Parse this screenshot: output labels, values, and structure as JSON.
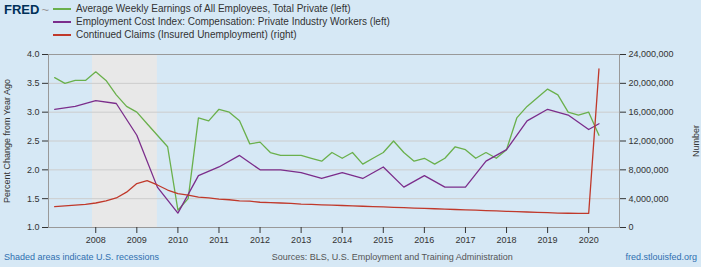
{
  "chart_data": {
    "type": "line",
    "annotations": [
      "FRED",
      "~",
      "Shaded areas indicate U.S. recessions",
      "Sources: BLS, U.S. Employment and Training Administration",
      "fred.stlouisfed.org"
    ],
    "ylabel": "Percent Change from Year Ago",
    "y2label": "Number",
    "legend": "top",
    "grid": true,
    "xlim": [
      2006.85,
      2020.75
    ],
    "xticks": [
      2008,
      2009,
      2010,
      2011,
      2012,
      2013,
      2014,
      2015,
      2016,
      2017,
      2018,
      2019,
      2020
    ],
    "ylim": [
      1.0,
      4.0
    ],
    "yticks": [
      {
        "value": 1.0,
        "label": "1.0"
      },
      {
        "value": 1.5,
        "label": "1.5"
      },
      {
        "value": 2.0,
        "label": "2.0"
      },
      {
        "value": 2.5,
        "label": "2.5"
      },
      {
        "value": 3.0,
        "label": "3.0"
      },
      {
        "value": 3.5,
        "label": "3.5"
      },
      {
        "value": 4.0,
        "label": "4.0"
      }
    ],
    "y2lim": [
      0,
      24000000
    ],
    "y2ticks": [
      0,
      {
        "value": 4000000,
        "label": "4,000,000"
      },
      {
        "value": 8000000,
        "label": "8,000,000"
      },
      {
        "value": 12000000,
        "label": "12,000,000"
      },
      {
        "value": 16000000,
        "label": "16,000,000"
      },
      {
        "value": 20000000,
        "label": "20,000,000"
      },
      {
        "value": 24000000,
        "label": "24,000,000"
      }
    ],
    "shaded_regions": [
      {
        "start": 2007.92,
        "end": 2009.5,
        "color": "#e8e8e8"
      }
    ],
    "series": [
      {
        "name": "Average Weekly Earnings of All Employees, Total Private (left)",
        "color": "#6ab04c",
        "x": [
          2007.0,
          2007.25,
          2007.5,
          2007.75,
          2008.0,
          2008.25,
          2008.5,
          2008.75,
          2009.0,
          2009.25,
          2009.5,
          2009.75,
          2010.0,
          2010.25,
          2010.5,
          2010.75,
          2011.0,
          2011.25,
          2011.5,
          2011.75,
          2012.0,
          2012.25,
          2012.5,
          2012.75,
          2013.0,
          2013.25,
          2013.5,
          2013.75,
          2014.0,
          2014.25,
          2014.5,
          2014.75,
          2015.0,
          2015.25,
          2015.5,
          2015.75,
          2016.0,
          2016.25,
          2016.5,
          2016.75,
          2017.0,
          2017.25,
          2017.5,
          2017.75,
          2018.0,
          2018.25,
          2018.5,
          2018.75,
          2019.0,
          2019.25,
          2019.5,
          2019.75,
          2020.0,
          2020.25
        ],
        "values": [
          3.6,
          3.5,
          3.55,
          3.55,
          3.7,
          3.55,
          3.3,
          3.1,
          3.0,
          2.8,
          2.6,
          2.4,
          1.3,
          1.5,
          2.9,
          2.85,
          3.05,
          3.0,
          2.85,
          2.45,
          2.48,
          2.3,
          2.25,
          2.25,
          2.25,
          2.2,
          2.15,
          2.3,
          2.2,
          2.3,
          2.1,
          2.2,
          2.3,
          2.5,
          2.3,
          2.15,
          2.2,
          2.1,
          2.2,
          2.4,
          2.35,
          2.2,
          2.3,
          2.2,
          2.35,
          2.9,
          3.1,
          3.25,
          3.4,
          3.3,
          3.0,
          2.95,
          3.0,
          2.6
        ]
      },
      {
        "name": "Employment Cost Index: Compensation: Private Industry Workers (left)",
        "color": "#7b2d8b",
        "x": [
          2007.0,
          2007.5,
          2008.0,
          2008.5,
          2009.0,
          2009.5,
          2010.0,
          2010.5,
          2011.0,
          2011.5,
          2012.0,
          2012.5,
          2013.0,
          2013.5,
          2014.0,
          2014.5,
          2015.0,
          2015.5,
          2016.0,
          2016.5,
          2017.0,
          2017.5,
          2018.0,
          2018.5,
          2019.0,
          2019.5,
          2020.0,
          2020.25
        ],
        "values": [
          3.05,
          3.1,
          3.2,
          3.15,
          2.6,
          1.7,
          1.25,
          1.9,
          2.05,
          2.25,
          2.0,
          2.0,
          1.95,
          1.85,
          1.95,
          1.85,
          2.05,
          1.7,
          1.9,
          1.7,
          1.7,
          2.15,
          2.35,
          2.85,
          3.05,
          2.95,
          2.7,
          2.8
        ]
      },
      {
        "name": "Continued Claims (Insured Unemployment) (right)",
        "color": "#c0392b",
        "axis": "y2",
        "x": [
          2007.0,
          2007.25,
          2007.5,
          2007.75,
          2008.0,
          2008.25,
          2008.5,
          2008.75,
          2009.0,
          2009.25,
          2009.5,
          2009.75,
          2010.0,
          2010.25,
          2010.5,
          2010.75,
          2011.0,
          2011.25,
          2011.5,
          2011.75,
          2012.0,
          2012.25,
          2012.5,
          2012.75,
          2013.0,
          2013.25,
          2013.5,
          2013.75,
          2014.0,
          2014.25,
          2014.5,
          2014.75,
          2015.0,
          2015.25,
          2015.5,
          2015.75,
          2016.0,
          2016.25,
          2016.5,
          2016.75,
          2017.0,
          2017.25,
          2017.5,
          2017.75,
          2018.0,
          2018.25,
          2018.5,
          2018.75,
          2019.0,
          2019.25,
          2019.5,
          2019.75,
          2020.0,
          2020.25
        ],
        "values": [
          2900000,
          3000000,
          3100000,
          3200000,
          3400000,
          3700000,
          4100000,
          4900000,
          6100000,
          6500000,
          5900000,
          5200000,
          4700000,
          4500000,
          4200000,
          4100000,
          3950000,
          3850000,
          3700000,
          3650000,
          3500000,
          3450000,
          3400000,
          3350000,
          3250000,
          3200000,
          3150000,
          3100000,
          3050000,
          3000000,
          2950000,
          2900000,
          2850000,
          2800000,
          2750000,
          2700000,
          2650000,
          2600000,
          2550000,
          2500000,
          2450000,
          2400000,
          2350000,
          2300000,
          2250000,
          2200000,
          2150000,
          2100000,
          2050000,
          2000000,
          1980000,
          1960000,
          1950000,
          22000000
        ]
      }
    ]
  }
}
